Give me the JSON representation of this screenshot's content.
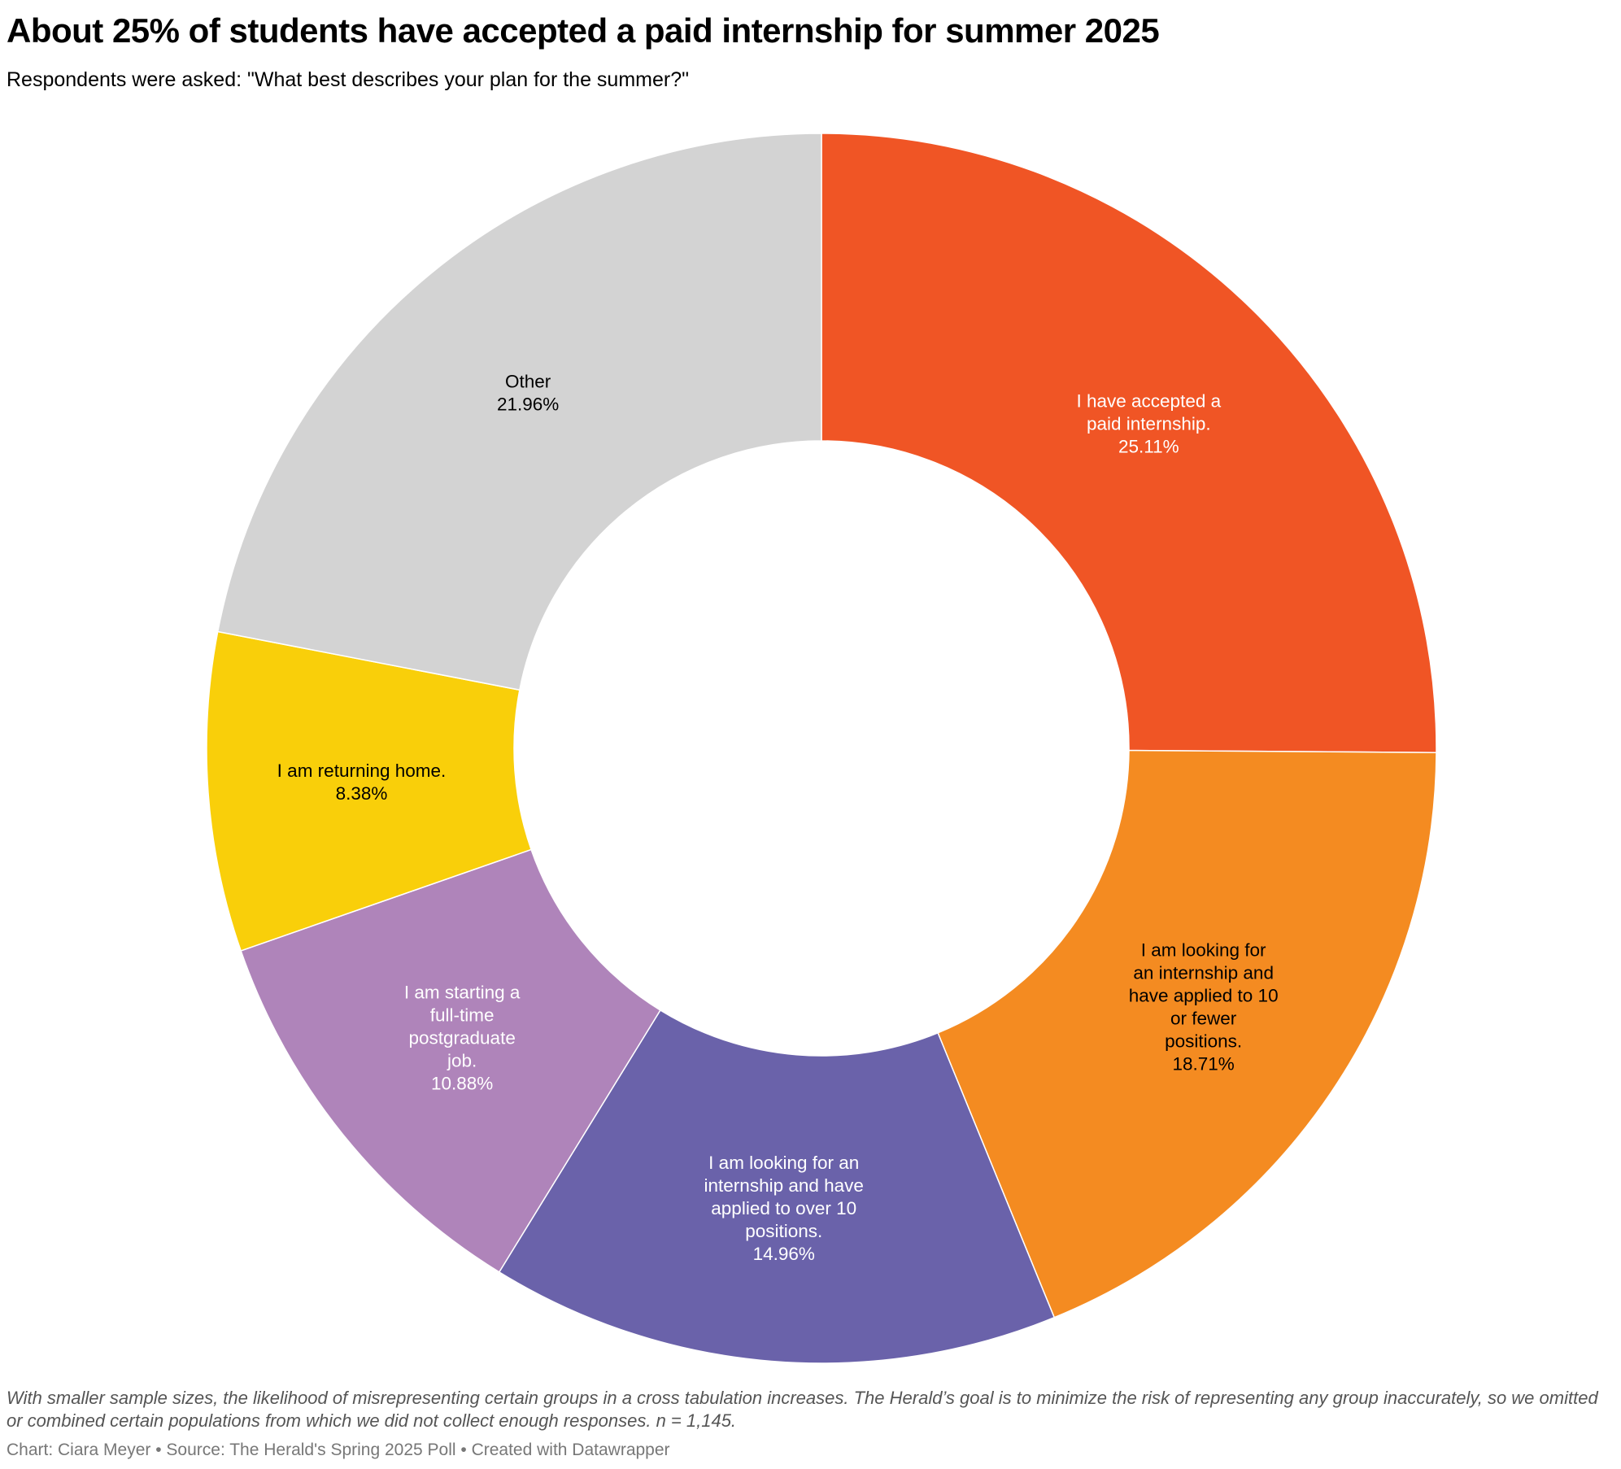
{
  "chart_data": {
    "type": "pie",
    "donut": true,
    "title": "About 25% of students have accepted a paid internship for summer 2025",
    "subtitle": "Respondents were asked: \"What best describes your plan for the summer?\"",
    "slices": [
      {
        "label_lines": [
          "I have accepted a",
          "paid internship."
        ],
        "value": 25.11,
        "value_text": "25.11%",
        "color": "#f05525",
        "text_color": "#ffffff"
      },
      {
        "label_lines": [
          "I am looking for",
          "an internship and",
          "have applied to 10",
          "or fewer",
          "positions."
        ],
        "value": 18.71,
        "value_text": "18.71%",
        "color": "#f48b21",
        "text_color": "#000000"
      },
      {
        "label_lines": [
          "I am looking for an",
          "internship and have",
          "applied to over 10",
          "positions."
        ],
        "value": 14.96,
        "value_text": "14.96%",
        "color": "#6a62aa",
        "text_color": "#ffffff"
      },
      {
        "label_lines": [
          "I am starting a",
          "full-time",
          "postgraduate",
          "job."
        ],
        "value": 10.88,
        "value_text": "10.88%",
        "color": "#af84ba",
        "text_color": "#ffffff"
      },
      {
        "label_lines": [
          "I am returning home."
        ],
        "value": 8.38,
        "value_text": "8.38%",
        "color": "#f9cf0a",
        "text_color": "#000000"
      },
      {
        "label_lines": [
          "Other"
        ],
        "value": 21.96,
        "value_text": "21.96%",
        "color": "#d3d3d3",
        "text_color": "#000000"
      }
    ]
  },
  "notes": "With smaller sample sizes, the likelihood of misrepresenting certain groups in a cross tabulation increases. The Herald’s goal is to minimize the risk of representing any group inaccurately, so we omitted or combined certain populations from which we did not collect enough responses. n = 1,145.",
  "footer": "Chart: Ciara Meyer • Source: The Herald's Spring 2025 Poll • Created with Datawrapper"
}
